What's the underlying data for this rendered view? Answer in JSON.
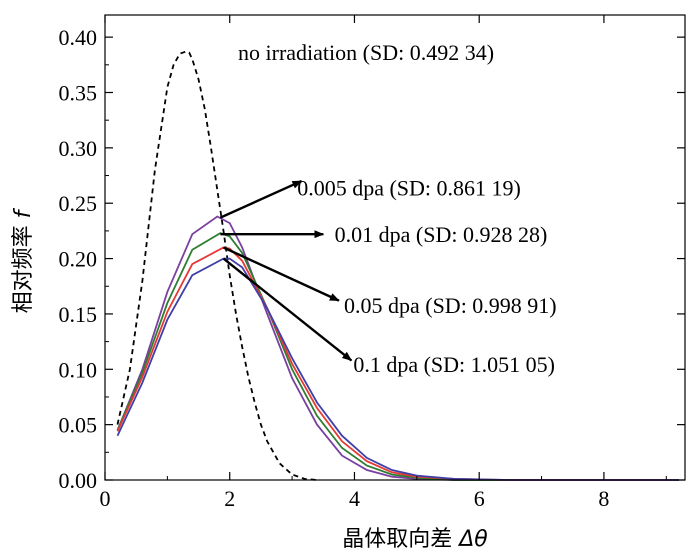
{
  "chart_data": {
    "type": "line",
    "xlabel_text": "晶体取向差 ",
    "xlabel_symbol": "Δθ",
    "ylabel_text": "相对频率 ",
    "ylabel_symbol": "f",
    "xlim": [
      0,
      9.3
    ],
    "ylim": [
      0,
      0.42
    ],
    "xticks": [
      0,
      2,
      4,
      6,
      8
    ],
    "yticks": [
      0.0,
      0.05,
      0.1,
      0.15,
      0.2,
      0.25,
      0.3,
      0.35,
      0.4
    ],
    "xtick_labels": [
      "0",
      "2",
      "4",
      "6",
      "8"
    ],
    "ytick_labels": [
      "0.00",
      "0.05",
      "0.10",
      "0.15",
      "0.20",
      "0.25",
      "0.30",
      "0.35",
      "0.40"
    ],
    "grid": false,
    "series": [
      {
        "name": "no irradiation (SD: 0.492 34)",
        "color": "#000000",
        "dash": true,
        "x": [
          0.2,
          0.4,
          0.6,
          0.8,
          1.0,
          1.1,
          1.2,
          1.3,
          1.35,
          1.4,
          1.5,
          1.6,
          1.7,
          1.8,
          1.9,
          2.0,
          2.1,
          2.2,
          2.3,
          2.4,
          2.5,
          2.6,
          2.8,
          3.0,
          3.2,
          3.4
        ],
        "y": [
          0.05,
          0.1,
          0.18,
          0.28,
          0.355,
          0.375,
          0.385,
          0.387,
          0.386,
          0.38,
          0.362,
          0.335,
          0.3,
          0.262,
          0.225,
          0.185,
          0.15,
          0.12,
          0.093,
          0.07,
          0.05,
          0.035,
          0.015,
          0.005,
          0.001,
          0.0
        ]
      },
      {
        "name": "0.005 dpa (SD: 0.861 19)",
        "color": "#7a3fa0",
        "dash": false,
        "x": [
          0.2,
          0.6,
          1.0,
          1.4,
          1.8,
          2.0,
          2.2,
          2.6,
          3.0,
          3.4,
          3.8,
          4.2,
          4.6,
          5.0,
          5.6,
          6.5,
          7.5,
          8.5,
          9.2
        ],
        "y": [
          0.045,
          0.1,
          0.17,
          0.222,
          0.238,
          0.232,
          0.21,
          0.15,
          0.092,
          0.05,
          0.022,
          0.009,
          0.003,
          0.001,
          0.0,
          0.0,
          0.0,
          0.0,
          0.0
        ]
      },
      {
        "name": "0.01 dpa (SD: 0.928 28)",
        "color": "#2e7d32",
        "dash": false,
        "x": [
          0.2,
          0.6,
          1.0,
          1.4,
          1.85,
          2.0,
          2.2,
          2.6,
          3.0,
          3.4,
          3.8,
          4.2,
          4.6,
          5.0,
          5.6,
          6.5,
          7.5,
          8.5,
          9.2
        ],
        "y": [
          0.045,
          0.097,
          0.16,
          0.208,
          0.223,
          0.22,
          0.205,
          0.155,
          0.1,
          0.058,
          0.029,
          0.013,
          0.005,
          0.002,
          0.0,
          0.0,
          0.0,
          0.0,
          0.0
        ]
      },
      {
        "name": "0.05 dpa (SD: 0.998 91)",
        "color": "#e53935",
        "dash": false,
        "x": [
          0.2,
          0.6,
          1.0,
          1.4,
          1.9,
          2.0,
          2.2,
          2.6,
          3.0,
          3.4,
          3.8,
          4.2,
          4.6,
          5.0,
          5.6,
          6.5,
          7.5,
          8.5,
          9.2
        ],
        "y": [
          0.044,
          0.093,
          0.152,
          0.195,
          0.21,
          0.209,
          0.198,
          0.155,
          0.105,
          0.065,
          0.035,
          0.017,
          0.007,
          0.003,
          0.001,
          0.0,
          0.0,
          0.0,
          0.0
        ]
      },
      {
        "name": "0.1 dpa (SD: 1.051 05)",
        "color": "#3f3fa8",
        "dash": false,
        "x": [
          0.2,
          0.6,
          1.0,
          1.4,
          1.9,
          2.0,
          2.2,
          2.6,
          3.0,
          3.4,
          3.8,
          4.2,
          4.6,
          5.0,
          5.6,
          6.5,
          7.5,
          8.5,
          9.2
        ],
        "y": [
          0.04,
          0.088,
          0.145,
          0.185,
          0.2,
          0.2,
          0.192,
          0.155,
          0.11,
          0.07,
          0.04,
          0.02,
          0.009,
          0.004,
          0.001,
          0.0,
          0.0,
          0.0,
          0.0
        ]
      }
    ],
    "annotations": [
      {
        "text": "no irradiation (SD: 0.492 34)",
        "series": 0
      },
      {
        "text": "0.005 dpa (SD: 0.861 19)",
        "series": 1,
        "arrow_from": [
          1.85,
          0.237
        ],
        "arrow_to": [
          3.15,
          0.27
        ],
        "label_at": [
          3.05,
          0.264
        ]
      },
      {
        "text": "0.01 dpa (SD: 0.928 28)",
        "series": 2,
        "arrow_from": [
          1.85,
          0.222
        ],
        "arrow_to": [
          3.5,
          0.222
        ],
        "label_at": [
          3.65,
          0.222
        ]
      },
      {
        "text": "0.05 dpa (SD: 0.998 91)",
        "series": 3,
        "arrow_from": [
          1.9,
          0.21
        ],
        "arrow_to": [
          3.75,
          0.162
        ],
        "label_at": [
          3.8,
          0.158
        ]
      },
      {
        "text": "0.1 dpa (SD: 1.051 05)",
        "series": 4,
        "arrow_from": [
          1.9,
          0.2
        ],
        "arrow_to": [
          3.95,
          0.108
        ],
        "label_at": [
          3.95,
          0.105
        ]
      }
    ]
  }
}
